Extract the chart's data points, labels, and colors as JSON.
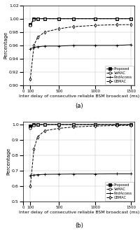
{
  "x_values": [
    100,
    150,
    200,
    300,
    500,
    700,
    1000,
    1300,
    1500
  ],
  "subplot_a": {
    "Proposed": [
      0.991,
      1.0,
      1.0,
      1.0,
      1.0,
      1.0,
      1.0,
      1.0,
      1.0
    ],
    "VeMAC": [
      0.99,
      0.999,
      1.0,
      1.0,
      1.0,
      1.0,
      1.0,
      1.0,
      1.0
    ],
    "RndAccess": [
      0.955,
      0.957,
      0.958,
      0.959,
      0.959,
      0.96,
      0.96,
      0.96,
      0.961
    ],
    "GBMAC": [
      0.91,
      0.96,
      0.972,
      0.98,
      0.985,
      0.988,
      0.99,
      0.991,
      0.991
    ]
  },
  "subplot_b": {
    "Proposed": [
      0.99,
      0.998,
      1.0,
      1.0,
      1.0,
      1.0,
      1.0,
      1.0,
      1.0
    ],
    "VeMAC": [
      0.975,
      0.993,
      0.998,
      1.0,
      1.0,
      1.0,
      1.0,
      1.0,
      1.0
    ],
    "RndAccess": [
      0.668,
      0.672,
      0.675,
      0.677,
      0.678,
      0.679,
      0.679,
      0.68,
      0.68
    ],
    "GBMAC": [
      0.6,
      0.84,
      0.92,
      0.96,
      0.975,
      0.984,
      0.99,
      0.993,
      0.994
    ]
  },
  "ylim_a": [
    0.9,
    1.02
  ],
  "ylim_b": [
    0.5,
    1.02
  ],
  "yticks_a": [
    0.9,
    0.92,
    0.94,
    0.96,
    0.98,
    1.0,
    1.02
  ],
  "yticks_b": [
    0.5,
    0.6,
    0.7,
    0.8,
    0.9,
    1.0
  ],
  "xlabel": "Inter delay of consecutive reliable BSM broadcast (ms)",
  "ylabel": "Percentage",
  "label_a": "(a)",
  "label_b": "(b)",
  "legend_keys": [
    "Proposed",
    "VeMAC",
    "RndAccess",
    "GBMAC"
  ],
  "line_styles": {
    "Proposed": {
      "color": "#000000",
      "marker": "s",
      "linestyle": "-",
      "markersize": 2.5,
      "markerfacecolor": "#000000",
      "markeredgecolor": "#000000"
    },
    "VeMAC": {
      "color": "#000000",
      "marker": "o",
      "linestyle": "--",
      "markersize": 2.5,
      "markerfacecolor": "white",
      "markeredgecolor": "#000000"
    },
    "RndAccess": {
      "color": "#000000",
      "marker": "+",
      "linestyle": "-",
      "markersize": 3.5,
      "markerfacecolor": "#000000",
      "markeredgecolor": "#000000"
    },
    "GBMAC": {
      "color": "#000000",
      "marker": "d",
      "linestyle": "--",
      "markersize": 2.5,
      "markerfacecolor": "white",
      "markeredgecolor": "#000000"
    }
  },
  "background_color": "#ffffff"
}
